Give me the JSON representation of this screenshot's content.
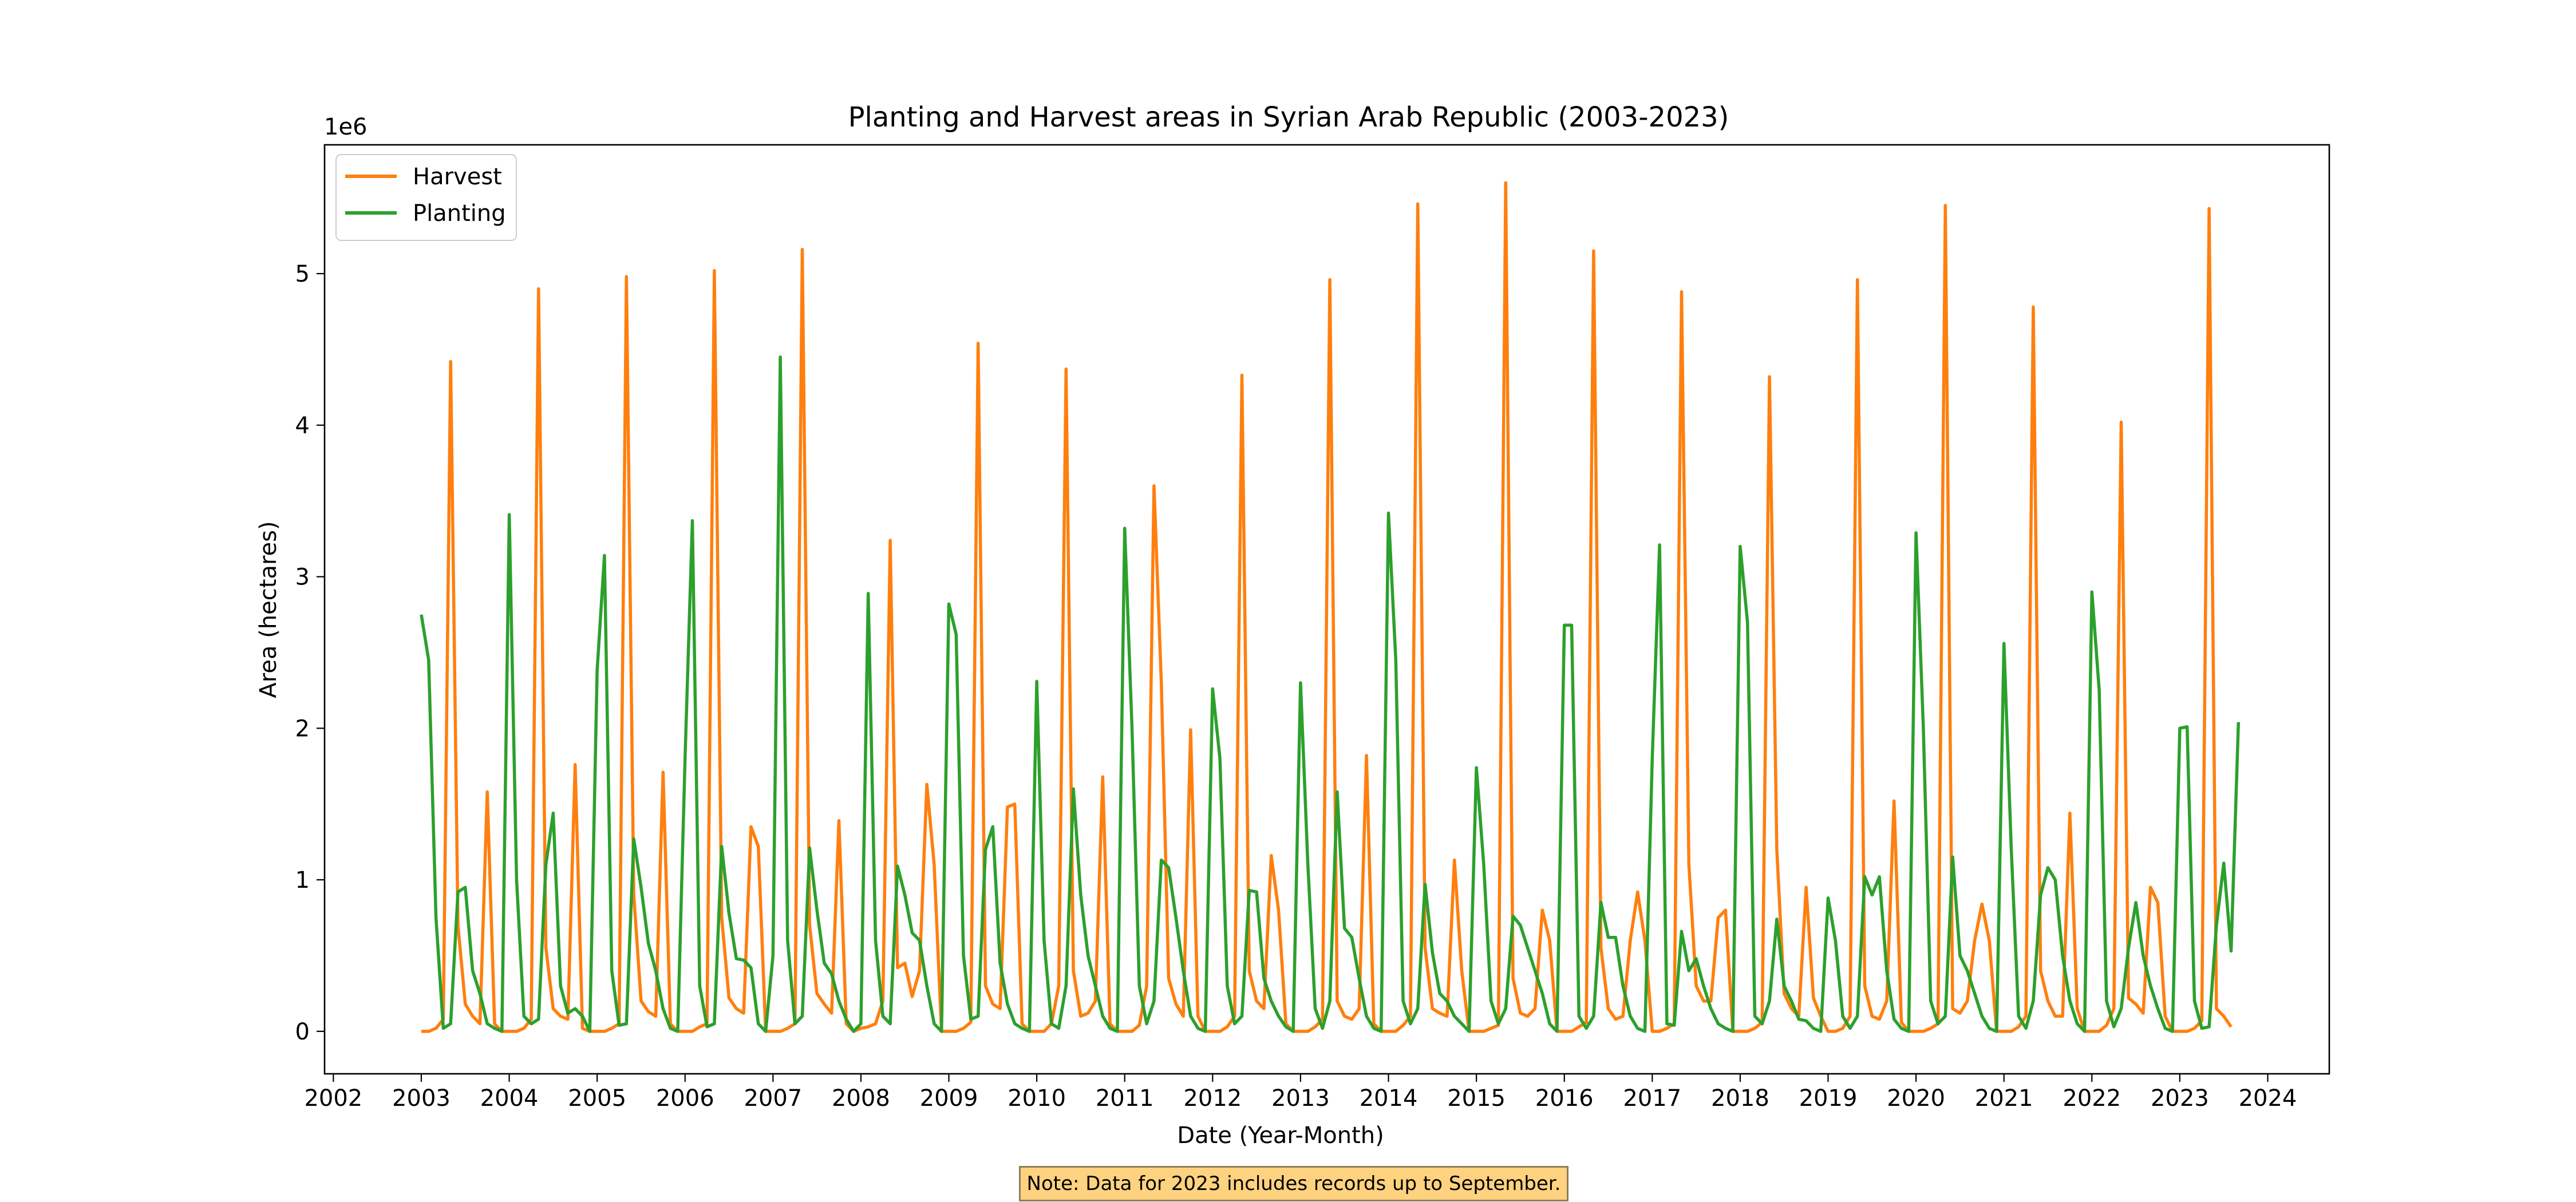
{
  "chart_data": {
    "type": "line",
    "title": "Planting and Harvest areas in Syrian Arab Republic (2003-2023)",
    "xlabel": "Date (Year-Month)",
    "ylabel": "Area (hectares)",
    "y_offset_label": "1e6",
    "x_start": "2003-01",
    "x_ticks": [
      "2002",
      "2003",
      "2004",
      "2005",
      "2006",
      "2007",
      "2008",
      "2009",
      "2010",
      "2011",
      "2012",
      "2013",
      "2014",
      "2015",
      "2016",
      "2017",
      "2018",
      "2019",
      "2020",
      "2021",
      "2022",
      "2023",
      "2024"
    ],
    "y_ticks": [
      "0",
      "1",
      "2",
      "3",
      "4",
      "5"
    ],
    "xlim": [
      2001.9,
      2024.7
    ],
    "ylim": [
      -0.28,
      5.85
    ],
    "grid": false,
    "legend_position": "upper left",
    "series": [
      {
        "name": "Harvest",
        "color": "#ff7f0e",
        "values": [
          0,
          0,
          0.02,
          0.08,
          4.42,
          0.7,
          0.18,
          0.1,
          0.05,
          1.58,
          0.05,
          0,
          0,
          0,
          0.02,
          0.08,
          4.9,
          0.55,
          0.15,
          0.1,
          0.08,
          1.76,
          0.02,
          0,
          0,
          0,
          0.02,
          0.05,
          4.98,
          0.9,
          0.2,
          0.13,
          0.1,
          1.71,
          0.05,
          0,
          0,
          0,
          0.03,
          0.05,
          5.02,
          0.75,
          0.22,
          0.15,
          0.12,
          1.35,
          1.22,
          0,
          0,
          0,
          0.02,
          0.05,
          5.16,
          0.7,
          0.25,
          0.18,
          0.12,
          1.39,
          0.05,
          0,
          0.02,
          0.03,
          0.05,
          0.2,
          3.24,
          0.42,
          0.45,
          0.23,
          0.4,
          1.63,
          1.1,
          0,
          0,
          0,
          0.02,
          0.06,
          4.54,
          0.3,
          0.18,
          0.15,
          1.48,
          1.5,
          0.05,
          0,
          0,
          0,
          0.05,
          0.3,
          4.37,
          0.4,
          0.1,
          0.12,
          0.2,
          1.68,
          0.05,
          0,
          0,
          0,
          0.04,
          0.3,
          3.6,
          2.3,
          0.35,
          0.18,
          0.1,
          1.99,
          0.1,
          0,
          0,
          0,
          0.03,
          0.1,
          4.33,
          0.4,
          0.2,
          0.15,
          1.16,
          0.8,
          0.05,
          0,
          0,
          0,
          0.03,
          0.08,
          4.96,
          0.2,
          0.1,
          0.08,
          0.15,
          1.82,
          0.05,
          0,
          0,
          0,
          0.04,
          0.1,
          5.46,
          0.55,
          0.15,
          0.12,
          0.1,
          1.13,
          0.4,
          0,
          0,
          0,
          0.02,
          0.04,
          5.6,
          0.35,
          0.12,
          0.1,
          0.15,
          0.8,
          0.6,
          0,
          0,
          0,
          0.03,
          0.06,
          5.15,
          0.55,
          0.15,
          0.08,
          0.1,
          0.6,
          0.92,
          0.6,
          0,
          0,
          0.02,
          0.05,
          4.88,
          1.1,
          0.3,
          0.2,
          0.2,
          0.75,
          0.8,
          0,
          0,
          0,
          0.02,
          0.06,
          4.32,
          1.2,
          0.25,
          0.15,
          0.1,
          0.95,
          0.22,
          0.1,
          0,
          0,
          0.02,
          0.1,
          4.96,
          0.3,
          0.1,
          0.08,
          0.2,
          1.52,
          0.06,
          0,
          0,
          0,
          0.02,
          0.05,
          5.45,
          0.15,
          0.12,
          0.2,
          0.6,
          0.84,
          0.6,
          0,
          0,
          0,
          0.03,
          0.1,
          4.78,
          0.4,
          0.2,
          0.1,
          0.1,
          1.44,
          0.15,
          0,
          0,
          0,
          0.04,
          0.15,
          4.02,
          0.22,
          0.18,
          0.12,
          0.95,
          0.85,
          0.1,
          0,
          0,
          0,
          0.02,
          0.07,
          5.43,
          0.15,
          0.1,
          0.03
        ]
      },
      {
        "name": "Planting",
        "color": "#2ca02c",
        "values": [
          2.75,
          2.45,
          0.75,
          0.02,
          0.05,
          0.92,
          0.95,
          0.4,
          0.25,
          0.05,
          0.02,
          0,
          3.41,
          1.0,
          0.1,
          0.05,
          0.08,
          1.1,
          1.44,
          0.3,
          0.12,
          0.15,
          0.1,
          0,
          2.38,
          3.14,
          0.4,
          0.04,
          0.05,
          1.27,
          0.95,
          0.58,
          0.4,
          0.15,
          0.02,
          0,
          1.8,
          3.37,
          0.3,
          0.03,
          0.05,
          1.22,
          0.78,
          0.48,
          0.47,
          0.42,
          0.05,
          0,
          0.5,
          4.45,
          0.6,
          0.05,
          0.1,
          1.21,
          0.8,
          0.45,
          0.38,
          0.2,
          0.08,
          0,
          0.05,
          2.89,
          0.6,
          0.1,
          0.05,
          1.09,
          0.9,
          0.65,
          0.6,
          0.3,
          0.05,
          0,
          2.82,
          2.62,
          0.5,
          0.08,
          0.1,
          1.2,
          1.35,
          0.45,
          0.18,
          0.05,
          0.02,
          0,
          2.31,
          0.6,
          0.05,
          0.02,
          0.3,
          1.6,
          0.9,
          0.5,
          0.3,
          0.1,
          0.02,
          0,
          3.32,
          2.0,
          0.3,
          0.05,
          0.2,
          1.13,
          1.08,
          0.75,
          0.4,
          0.1,
          0.02,
          0,
          2.26,
          1.8,
          0.3,
          0.05,
          0.1,
          0.93,
          0.92,
          0.35,
          0.2,
          0.1,
          0.03,
          0,
          2.3,
          1.1,
          0.15,
          0.02,
          0.2,
          1.58,
          0.68,
          0.62,
          0.35,
          0.1,
          0.02,
          0,
          3.42,
          2.45,
          0.2,
          0.05,
          0.15,
          0.97,
          0.52,
          0.25,
          0.2,
          0.1,
          0.05,
          0,
          1.74,
          1.1,
          0.2,
          0.05,
          0.15,
          0.76,
          0.7,
          0.55,
          0.4,
          0.25,
          0.05,
          0,
          2.68,
          2.68,
          0.1,
          0.02,
          0.1,
          0.85,
          0.62,
          0.62,
          0.3,
          0.1,
          0.02,
          0,
          1.8,
          3.21,
          0.05,
          0.04,
          0.66,
          0.4,
          0.48,
          0.3,
          0.15,
          0.05,
          0.02,
          0,
          3.2,
          2.7,
          0.1,
          0.05,
          0.2,
          0.74,
          0.3,
          0.2,
          0.08,
          0.07,
          0.02,
          0,
          0.88,
          0.6,
          0.1,
          0.02,
          0.1,
          1.02,
          0.9,
          1.02,
          0.4,
          0.08,
          0.02,
          0,
          3.29,
          2.0,
          0.2,
          0.05,
          0.1,
          1.15,
          0.5,
          0.4,
          0.25,
          0.1,
          0.02,
          0,
          2.56,
          1.2,
          0.1,
          0.02,
          0.2,
          0.9,
          1.08,
          1.0,
          0.5,
          0.2,
          0.05,
          0,
          2.9,
          2.25,
          0.2,
          0.03,
          0.15,
          0.55,
          0.85,
          0.5,
          0.3,
          0.15,
          0.02,
          0,
          2.0,
          2.01,
          0.2,
          0.02,
          0.03,
          0.7,
          1.11,
          0.53,
          2.04
        ]
      }
    ]
  },
  "note": "Note: Data for 2023 includes records up to September."
}
